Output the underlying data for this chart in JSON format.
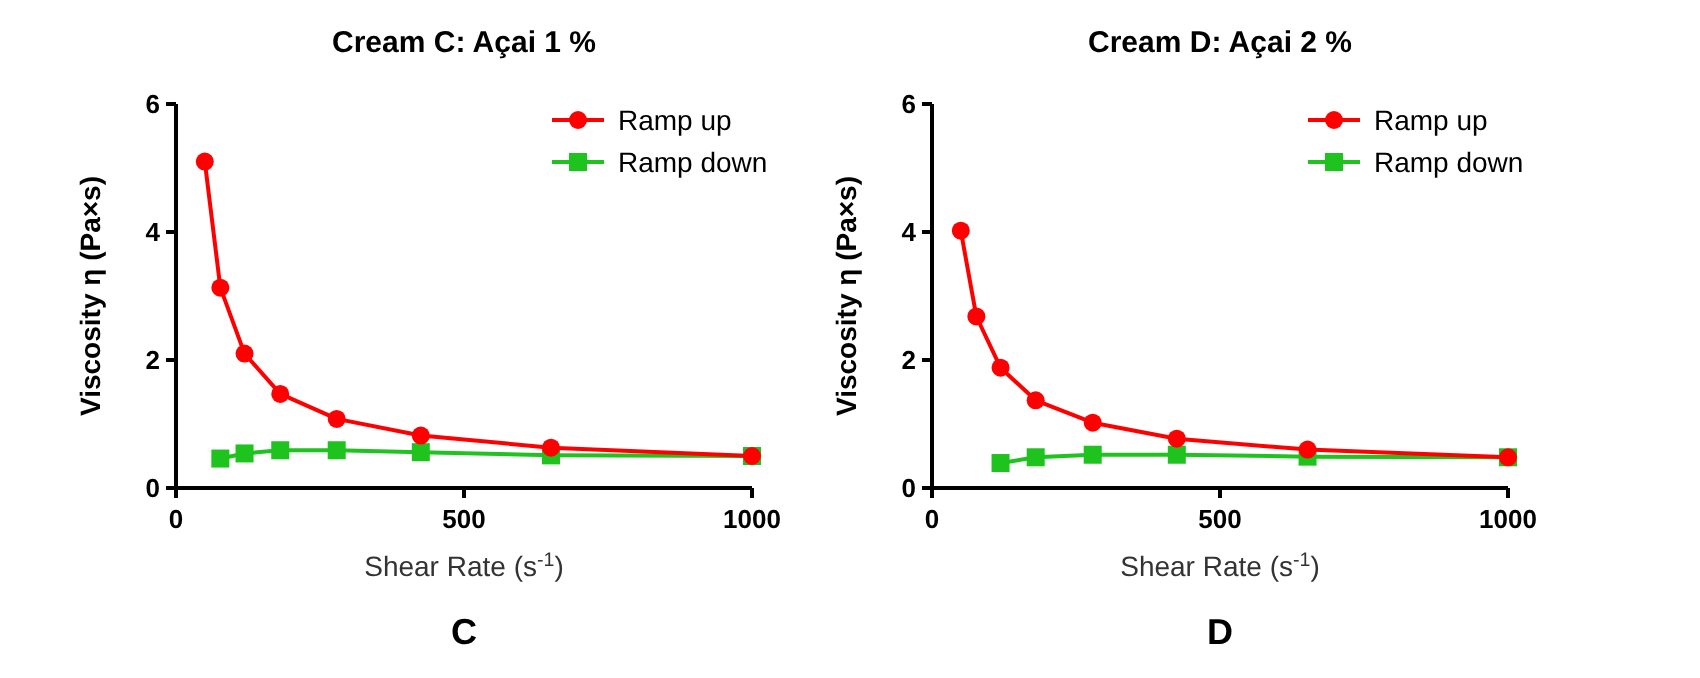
{
  "chart_data": [
    {
      "type": "line",
      "title": "Cream C: Açai 1 %",
      "xlabel": "Shear Rate (s$^{-1}$)",
      "ylabel": "Viscosity η (Pa×s)",
      "annotations": [
        "C"
      ],
      "xlim": [
        0,
        1000
      ],
      "xticks": [
        0,
        500,
        1000
      ],
      "ylim": [
        0,
        6
      ],
      "yticks": [
        0,
        2,
        4,
        6
      ],
      "grid": false,
      "legend": "top right",
      "series": [
        {
          "name": "Ramp up",
          "color": "#ff0000",
          "marker": "circle",
          "x": [
            50,
            77,
            119,
            181,
            279,
            425,
            651,
            1000
          ],
          "values": [
            5.1,
            3.13,
            2.1,
            1.47,
            1.08,
            0.82,
            0.63,
            0.5
          ]
        },
        {
          "name": "Ramp down",
          "color": "#1ec31e",
          "marker": "square",
          "x": [
            77,
            119,
            181,
            279,
            425,
            651,
            1000
          ],
          "values": [
            0.46,
            0.54,
            0.59,
            0.59,
            0.56,
            0.51,
            0.5
          ]
        }
      ]
    },
    {
      "type": "line",
      "title": "Cream D: Açai 2 %",
      "xlabel": "Shear Rate (s$^{-1}$)",
      "ylabel": "Viscosity η (Pa×s)",
      "annotations": [
        "D"
      ],
      "xlim": [
        0,
        1000
      ],
      "xticks": [
        0,
        500,
        1000
      ],
      "ylim": [
        0,
        6
      ],
      "yticks": [
        0,
        2,
        4,
        6
      ],
      "grid": false,
      "legend": "top right",
      "series": [
        {
          "name": "Ramp up",
          "color": "#ff0000",
          "marker": "circle",
          "x": [
            50,
            77,
            119,
            180,
            279,
            425,
            652,
            1000
          ],
          "values": [
            4.02,
            2.68,
            1.88,
            1.37,
            1.02,
            0.77,
            0.6,
            0.48
          ]
        },
        {
          "name": "Ramp down",
          "color": "#1ec31e",
          "marker": "square",
          "x": [
            119,
            180,
            279,
            425,
            652,
            1000
          ],
          "values": [
            0.39,
            0.48,
            0.52,
            0.52,
            0.49,
            0.48
          ]
        }
      ]
    }
  ]
}
